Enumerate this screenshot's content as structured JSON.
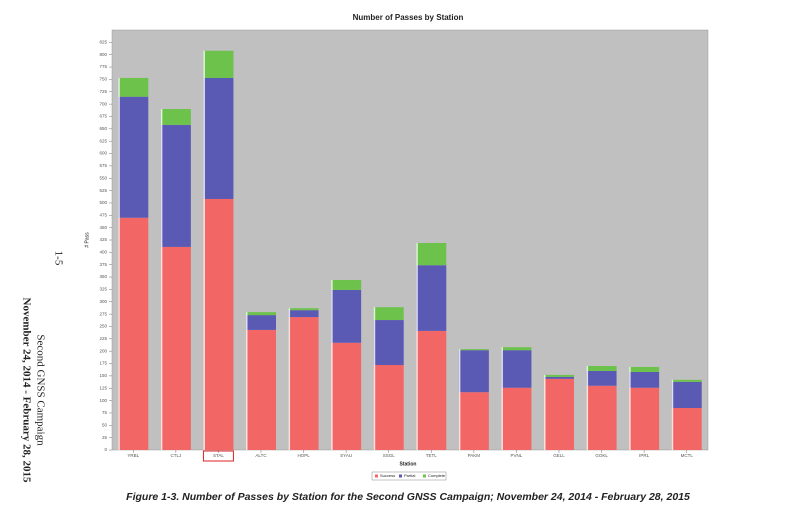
{
  "page": {
    "number": "1-5",
    "header": [
      "Second GNSS Campaign",
      "November 24, 2014 - February 28, 2015"
    ],
    "caption": "Figure 1-3.  Number of Passes by Station for the Second GNSS Campaign; November 24, 2014 - February 28, 2015"
  },
  "chart_data": {
    "type": "bar",
    "stacked": true,
    "title": "Number of Passes by Station",
    "x_label": "Station",
    "y_label": "# Pass",
    "categories": [
      "YRBL",
      "CTLJ",
      "STAL",
      "ALTC",
      "HOPL",
      "SYAU",
      "SSGL",
      "TETL",
      "PAKM",
      "PVNL",
      "GELL",
      "GOKL",
      "IPRL",
      "MCTL"
    ],
    "series": [
      {
        "name": "Success",
        "color": "#f26666",
        "values": [
          470,
          411,
          508,
          243,
          269,
          217,
          172,
          241,
          117,
          126,
          144,
          130,
          126,
          85
        ]
      },
      {
        "name": "Partial",
        "color": "#5a5ab4",
        "values": [
          245,
          247,
          245,
          30,
          14,
          107,
          91,
          133,
          85,
          76,
          4,
          30,
          32,
          53
        ]
      },
      {
        "name": "Complete",
        "color": "#6cc24a",
        "values": [
          38,
          32,
          55,
          6,
          4,
          20,
          26,
          45,
          2,
          6,
          4,
          10,
          10,
          4
        ]
      }
    ],
    "ylim": [
      0,
      850
    ],
    "yticks": [
      0,
      25,
      50,
      75,
      100,
      125,
      150,
      175,
      200,
      225,
      250,
      275,
      300,
      325,
      350,
      375,
      400,
      425,
      450,
      475,
      500,
      525,
      550,
      575,
      600,
      625,
      650,
      675,
      700,
      725,
      750,
      775,
      800,
      825
    ],
    "background": "#c0c0c0"
  }
}
